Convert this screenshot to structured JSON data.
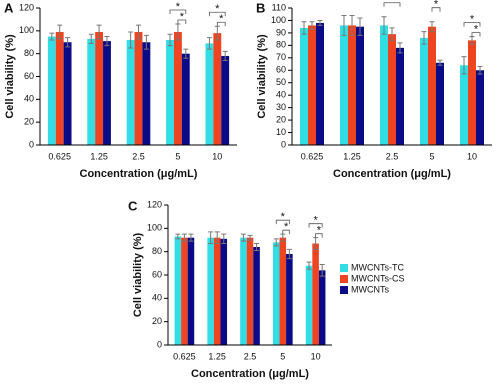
{
  "chart_data": [
    {
      "type": "bar",
      "panel": "A",
      "x_label": "Concentration (μg/mL)",
      "y_label": "Cell viability (%)",
      "categories": [
        "0.625",
        "1.25",
        "2.5",
        "5",
        "10"
      ],
      "series": [
        {
          "name": "MWCNTs-TC",
          "color": "#33dde6",
          "values": [
            95,
            93,
            92,
            92,
            89
          ],
          "errors": [
            3,
            4,
            7,
            5,
            5
          ]
        },
        {
          "name": "MWCNTs-CS",
          "color": "#ee4422",
          "values": [
            99,
            99,
            99,
            99,
            98
          ],
          "errors": [
            6,
            6,
            6,
            7,
            6
          ]
        },
        {
          "name": "MWCNTs",
          "color": "#0b0b88",
          "values": [
            90,
            91,
            90,
            80,
            78
          ],
          "errors": [
            4,
            4,
            6,
            4,
            4
          ]
        }
      ],
      "ylim": [
        0,
        120
      ],
      "yticks": [
        0,
        20,
        40,
        60,
        80,
        100,
        120
      ],
      "legend": false,
      "brackets": [
        {
          "label": "*",
          "category": "5",
          "pair": [
            "MWCNTs-TC",
            "MWCNTs"
          ]
        },
        {
          "label": "*",
          "category": "5",
          "pair": [
            "MWCNTs-CS",
            "MWCNTs"
          ]
        },
        {
          "label": "*",
          "category": "10",
          "pair": [
            "MWCNTs-TC",
            "MWCNTs"
          ]
        },
        {
          "label": "*",
          "category": "10",
          "pair": [
            "MWCNTs-CS",
            "MWCNTs"
          ]
        }
      ]
    },
    {
      "type": "bar",
      "panel": "B",
      "x_label": "Concentration (μg/mL)",
      "y_label": "Cell viability (%)",
      "categories": [
        "0.625",
        "1.25",
        "2.5",
        "5",
        "10"
      ],
      "series": [
        {
          "name": "MWCNTs-TC",
          "color": "#33dde6",
          "values": [
            94,
            96,
            96,
            86,
            64
          ],
          "errors": [
            5,
            8,
            7,
            5,
            7
          ]
        },
        {
          "name": "MWCNTs-CS",
          "color": "#ee4422",
          "values": [
            96,
            96,
            89,
            95,
            84
          ],
          "errors": [
            3,
            8,
            5,
            4,
            3
          ]
        },
        {
          "name": "MWCNTs",
          "color": "#0b0b88",
          "values": [
            98,
            95,
            78,
            66,
            60
          ],
          "errors": [
            2,
            7,
            4,
            2,
            3
          ]
        }
      ],
      "ylim": [
        0,
        110
      ],
      "yticks": [
        0,
        10,
        20,
        30,
        40,
        50,
        60,
        70,
        80,
        90,
        100,
        110
      ],
      "legend": false,
      "brackets": [
        {
          "label": "*",
          "category": "2.5",
          "pair": [
            "MWCNTs-TC",
            "MWCNTs"
          ]
        },
        {
          "label": "*",
          "category": "5",
          "pair": [
            "MWCNTs-CS",
            "MWCNTs"
          ]
        },
        {
          "label": "*",
          "category": "10",
          "pair": [
            "MWCNTs-TC",
            "MWCNTs"
          ]
        },
        {
          "label": "*",
          "category": "10",
          "pair": [
            "MWCNTs-CS",
            "MWCNTs"
          ]
        }
      ]
    },
    {
      "type": "bar",
      "panel": "C",
      "x_label": "Concentration (μg/mL)",
      "y_label": "Cell viability (%)",
      "categories": [
        "0.625",
        "1.25",
        "2.5",
        "5",
        "10"
      ],
      "series": [
        {
          "name": "MWCNTs-TC",
          "color": "#33dde6",
          "values": [
            93,
            92,
            92,
            88,
            68
          ],
          "errors": [
            2,
            5,
            3,
            3,
            3
          ]
        },
        {
          "name": "MWCNTs-CS",
          "color": "#ee4422",
          "values": [
            92,
            92,
            92,
            92,
            87
          ],
          "errors": [
            3,
            5,
            2,
            3,
            5
          ]
        },
        {
          "name": "MWCNTs",
          "color": "#0b0b88",
          "values": [
            92,
            91,
            84,
            78,
            64
          ],
          "errors": [
            3,
            4,
            3,
            4,
            5
          ]
        }
      ],
      "ylim": [
        0,
        120
      ],
      "yticks": [
        0,
        20,
        40,
        60,
        80,
        100,
        120
      ],
      "legend": true,
      "brackets": [
        {
          "label": "*",
          "category": "5",
          "pair": [
            "MWCNTs-TC",
            "MWCNTs"
          ]
        },
        {
          "label": "*",
          "category": "5",
          "pair": [
            "MWCNTs-CS",
            "MWCNTs"
          ]
        },
        {
          "label": "*",
          "category": "10",
          "pair": [
            "MWCNTs-TC",
            "MWCNTs"
          ]
        },
        {
          "label": "*",
          "category": "10",
          "pair": [
            "MWCNTs-CS",
            "MWCNTs"
          ]
        }
      ]
    }
  ]
}
